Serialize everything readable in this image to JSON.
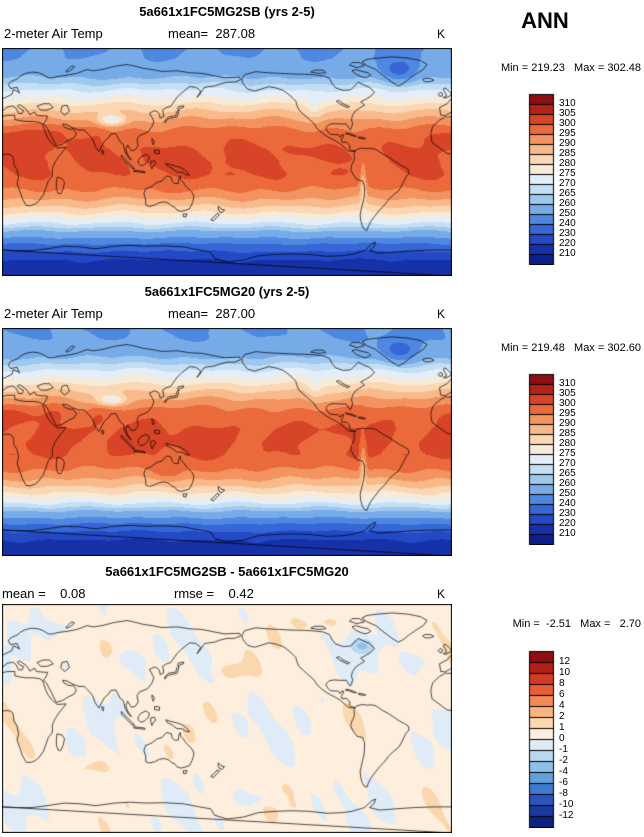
{
  "season_label": "ANN",
  "panels": [
    {
      "title": "5a661x1FC5MG2SB (yrs 2-5)",
      "field_label": "2-meter Air Temp",
      "mean_label": "mean=  287.08",
      "units_label": "K",
      "stats_label": "Min = 219.23   Max = 302.48",
      "colorbar": {
        "labels_top_to_bottom": [
          "310",
          "305",
          "300",
          "295",
          "290",
          "285",
          "280",
          "275",
          "270",
          "265",
          "260",
          "250",
          "240",
          "230",
          "220",
          "210"
        ],
        "colors_top_to_bottom": [
          "#8c0d12",
          "#b32218",
          "#d84427",
          "#ea6a3c",
          "#f3935f",
          "#f8ba8a",
          "#fbd7b4",
          "#f6ead8",
          "#e3eef8",
          "#c4def3",
          "#9fc8ee",
          "#77abe8",
          "#4f88e0",
          "#3766d6",
          "#2449c6",
          "#1631a8",
          "#0c1f8a"
        ]
      }
    },
    {
      "title": "5a661x1FC5MG20 (yrs 2-5)",
      "field_label": "2-meter Air Temp",
      "mean_label": "mean=  287.00",
      "units_label": "K",
      "stats_label": "Min = 219.48   Max = 302.60",
      "colorbar": {
        "labels_top_to_bottom": [
          "310",
          "305",
          "300",
          "295",
          "290",
          "285",
          "280",
          "275",
          "270",
          "265",
          "260",
          "250",
          "240",
          "230",
          "220",
          "210"
        ],
        "colors_top_to_bottom": [
          "#8c0d12",
          "#b32218",
          "#d84427",
          "#ea6a3c",
          "#f3935f",
          "#f8ba8a",
          "#fbd7b4",
          "#f6ead8",
          "#e3eef8",
          "#c4def3",
          "#9fc8ee",
          "#77abe8",
          "#4f88e0",
          "#3766d6",
          "#2449c6",
          "#1631a8",
          "#0c1f8a"
        ]
      }
    },
    {
      "title": "5a661x1FC5MG2SB - 5a661x1FC5MG20",
      "mean_label": "mean =    0.08",
      "rmse_label": "rmse =    0.42",
      "units_label": "K",
      "stats_label": "Min =  -2.51   Max =   2.70",
      "colorbar": {
        "labels_top_to_bottom": [
          "12",
          "10",
          "8",
          "6",
          "4",
          "2",
          "1",
          "0",
          "-1",
          "-2",
          "-4",
          "-6",
          "-8",
          "-10",
          "-12"
        ],
        "colors_top_to_bottom": [
          "#8f0e12",
          "#b22018",
          "#d23b24",
          "#e65f35",
          "#f28b55",
          "#f7b582",
          "#fbd7ae",
          "#fdeedd",
          "#dfecf7",
          "#b9d8f0",
          "#8fc0e8",
          "#649fdd",
          "#3f78d0",
          "#2b55bd",
          "#1b389f",
          "#0d2382"
        ]
      }
    }
  ],
  "chart_data": [
    {
      "type": "heatmap",
      "title": "5a661x1FC5MG2SB (yrs 2-5)",
      "variable": "2-meter Air Temp",
      "season": "ANN",
      "units": "K",
      "projection": "global equirectangular, lon 0-360, lat -90 to 90",
      "mean": 287.08,
      "min": 219.23,
      "max": 302.48,
      "contour_levels": [
        210,
        220,
        230,
        240,
        250,
        260,
        265,
        270,
        275,
        280,
        285,
        290,
        295,
        300,
        305,
        310
      ],
      "legend_position": "right",
      "description": "Zonally banded global 2-m air temperature: warm red tropics near 300-305 K, cream transition band near 50N/50S, blue high latitudes, deep navy Antarctica 210-220 K; cold spots over Tibet, Greenland and the Andes; warm Sahara/Arabia"
    },
    {
      "type": "heatmap",
      "title": "5a661x1FC5MG20 (yrs 2-5)",
      "variable": "2-meter Air Temp",
      "season": "ANN",
      "units": "K",
      "projection": "global equirectangular, lon 0-360, lat -90 to 90",
      "mean": 287.0,
      "min": 219.48,
      "max": 302.6,
      "contour_levels": [
        210,
        220,
        230,
        240,
        250,
        260,
        265,
        270,
        275,
        280,
        285,
        290,
        295,
        300,
        305,
        310
      ],
      "legend_position": "right",
      "description": "Nearly identical to the first panel: same zonal temperature structure with minor contour differences"
    },
    {
      "type": "heatmap",
      "title": "5a661x1FC5MG2SB - 5a661x1FC5MG20",
      "variable": "2-meter Air Temp difference",
      "season": "ANN",
      "units": "K",
      "projection": "global equirectangular, lon 0-360, lat -90 to 90",
      "mean": 0.08,
      "rmse": 0.42,
      "min": -2.51,
      "max": 2.7,
      "contour_levels": [
        -12,
        -10,
        -8,
        -6,
        -4,
        -2,
        -1,
        0,
        1,
        2,
        4,
        6,
        8,
        10,
        12
      ],
      "legend_position": "right",
      "description": "Near-zero differences: mostly pale warm tint (0 to 1 K) with scattered weak cool patches (-2 to 0 K) over northeast Canada, the Arctic and parts of Eurasia and the Southern Ocean"
    }
  ]
}
